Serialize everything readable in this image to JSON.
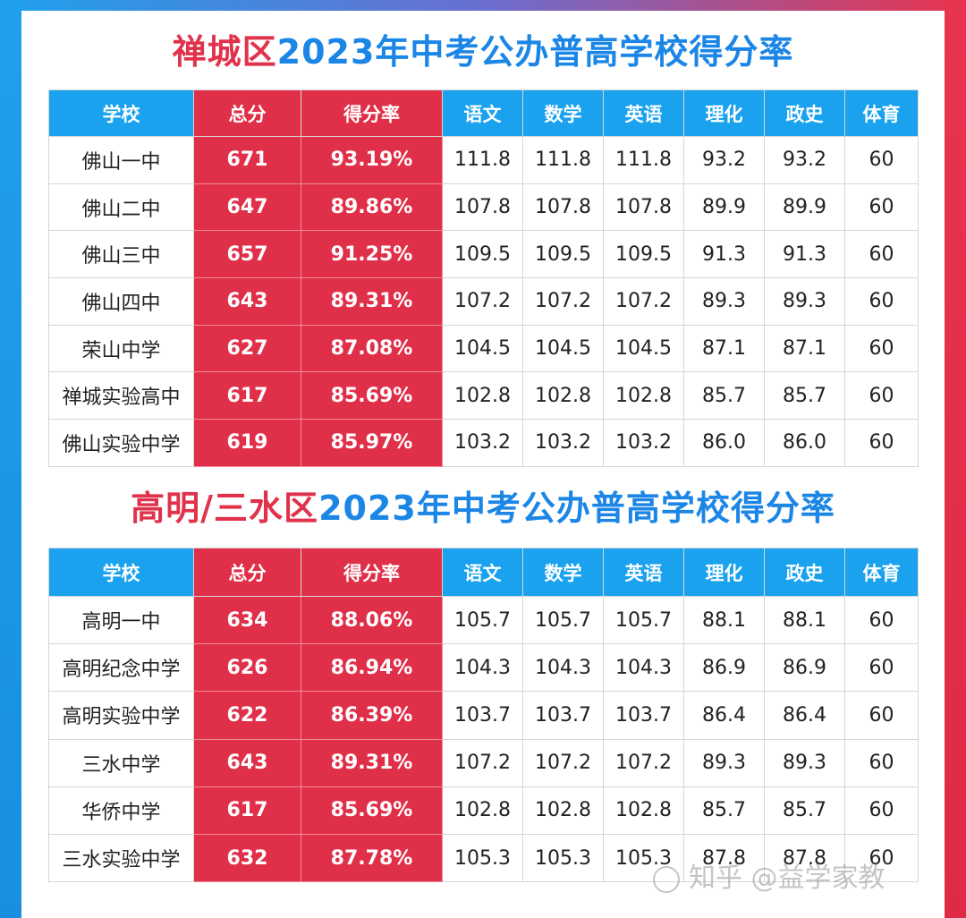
{
  "section1": {
    "title_red": "禅城区",
    "title_blue": "2023年中考公办普高学校得分率",
    "headers": [
      "学校",
      "总分",
      "得分率",
      "语文",
      "数学",
      "英语",
      "理化",
      "政史",
      "体育"
    ],
    "rows": [
      [
        "佛山一中",
        "671",
        "93.19%",
        "111.8",
        "111.8",
        "111.8",
        "93.2",
        "93.2",
        "60"
      ],
      [
        "佛山二中",
        "647",
        "89.86%",
        "107.8",
        "107.8",
        "107.8",
        "89.9",
        "89.9",
        "60"
      ],
      [
        "佛山三中",
        "657",
        "91.25%",
        "109.5",
        "109.5",
        "109.5",
        "91.3",
        "91.3",
        "60"
      ],
      [
        "佛山四中",
        "643",
        "89.31%",
        "107.2",
        "107.2",
        "107.2",
        "89.3",
        "89.3",
        "60"
      ],
      [
        "荣山中学",
        "627",
        "87.08%",
        "104.5",
        "104.5",
        "104.5",
        "87.1",
        "87.1",
        "60"
      ],
      [
        "禅城实验高中",
        "617",
        "85.69%",
        "102.8",
        "102.8",
        "102.8",
        "85.7",
        "85.7",
        "60"
      ],
      [
        "佛山实验中学",
        "619",
        "85.97%",
        "103.2",
        "103.2",
        "103.2",
        "86.0",
        "86.0",
        "60"
      ]
    ]
  },
  "section2": {
    "title_red": "高明/三水区",
    "title_blue": "2023年中考公办普高学校得分率",
    "headers": [
      "学校",
      "总分",
      "得分率",
      "语文",
      "数学",
      "英语",
      "理化",
      "政史",
      "体育"
    ],
    "rows": [
      [
        "高明一中",
        "634",
        "88.06%",
        "105.7",
        "105.7",
        "105.7",
        "88.1",
        "88.1",
        "60"
      ],
      [
        "高明纪念中学",
        "626",
        "86.94%",
        "104.3",
        "104.3",
        "104.3",
        "86.9",
        "86.9",
        "60"
      ],
      [
        "高明实验中学",
        "622",
        "86.39%",
        "103.7",
        "103.7",
        "103.7",
        "86.4",
        "86.4",
        "60"
      ],
      [
        "三水中学",
        "643",
        "89.31%",
        "107.2",
        "107.2",
        "107.2",
        "89.3",
        "89.3",
        "60"
      ],
      [
        "华侨中学",
        "617",
        "85.69%",
        "102.8",
        "102.8",
        "102.8",
        "85.7",
        "85.7",
        "60"
      ],
      [
        "三水实验中学",
        "632",
        "87.78%",
        "105.3",
        "105.3",
        "105.3",
        "87.8",
        "87.8",
        "60"
      ]
    ]
  },
  "watermark": "知乎 @益学家教",
  "colors": {
    "red": "#e03049",
    "blue": "#1aa2ee"
  }
}
